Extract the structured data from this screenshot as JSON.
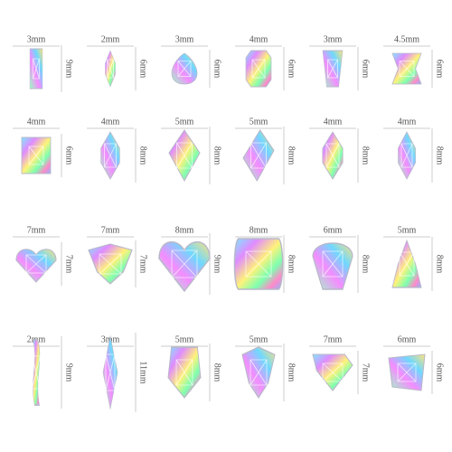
{
  "rows": [
    [
      {
        "width": "3mm",
        "height": "9mm"
      },
      {
        "width": "2mm",
        "height": "6mm"
      },
      {
        "width": "3mm",
        "height": "6mm"
      },
      {
        "width": "4mm",
        "height": "6mm"
      },
      {
        "width": "3mm",
        "height": "6mm"
      },
      {
        "width": "4.5mm",
        "height": "6mm"
      }
    ],
    [
      {
        "width": "4mm",
        "height": "6mm"
      },
      {
        "width": "4mm",
        "height": "8mm"
      },
      {
        "width": "5mm",
        "height": "8mm"
      },
      {
        "width": "5mm",
        "height": "8mm"
      },
      {
        "width": "4mm",
        "height": "8mm"
      },
      {
        "width": "4mm",
        "height": "8mm"
      }
    ],
    [
      {
        "width": "7mm",
        "height": "7mm"
      },
      {
        "width": "7mm",
        "height": "7mm"
      },
      {
        "width": "8mm",
        "height": "9mm"
      },
      {
        "width": "8mm",
        "height": "8mm"
      },
      {
        "width": "6mm",
        "height": "8mm"
      },
      {
        "width": "5mm",
        "height": "8mm"
      }
    ],
    [
      {
        "width": "2mm",
        "height": "9mm"
      },
      {
        "width": "3mm",
        "height": "11mm"
      },
      {
        "width": "5mm",
        "height": "8mm"
      },
      {
        "width": "5mm",
        "height": "8mm"
      },
      {
        "width": "7mm",
        "height": "7mm"
      },
      {
        "width": "6mm",
        "height": "6mm"
      }
    ]
  ]
}
